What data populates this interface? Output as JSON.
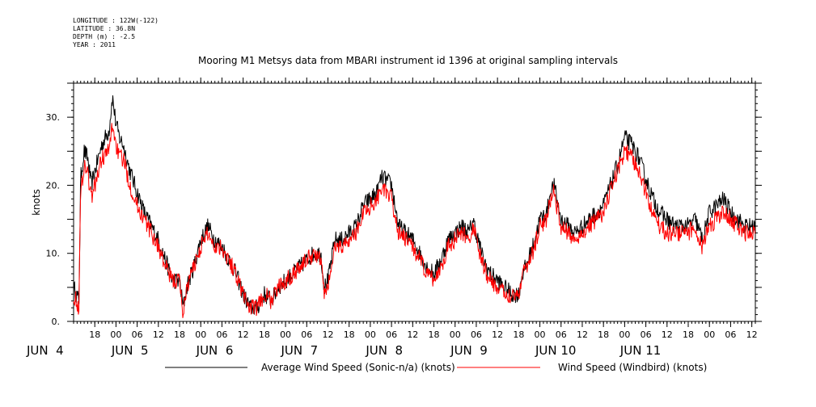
{
  "header": {
    "longitude": "LONGITUDE : 122W(-122)",
    "latitude": "LATITUDE : 36.8N",
    "depth": "DEPTH (m) : -2.5",
    "year": "YEAR : 2011"
  },
  "chart_data": {
    "type": "line",
    "title": "Mooring M1 Metsys data from MBARI instrument id 1396 at original sampling intervals",
    "ylabel": "knots",
    "ylim": [
      0,
      35
    ],
    "y_ticks": [
      0,
      10,
      20,
      30
    ],
    "y_tick_labels": [
      "0.",
      "10.",
      "20.",
      "30."
    ],
    "x_unit": "hours since JUN 3 12:00",
    "xlim": [
      0,
      193
    ],
    "x_hour_ticks": [
      {
        "t": 6,
        "label": "18"
      },
      {
        "t": 12,
        "label": "00"
      },
      {
        "t": 18,
        "label": "06"
      },
      {
        "t": 24,
        "label": "12"
      },
      {
        "t": 30,
        "label": "18"
      },
      {
        "t": 36,
        "label": "00"
      },
      {
        "t": 42,
        "label": "06"
      },
      {
        "t": 48,
        "label": "12"
      },
      {
        "t": 54,
        "label": "18"
      },
      {
        "t": 60,
        "label": "00"
      },
      {
        "t": 66,
        "label": "06"
      },
      {
        "t": 72,
        "label": "12"
      },
      {
        "t": 78,
        "label": "18"
      },
      {
        "t": 84,
        "label": "00"
      },
      {
        "t": 90,
        "label": "06"
      },
      {
        "t": 96,
        "label": "12"
      },
      {
        "t": 102,
        "label": "18"
      },
      {
        "t": 108,
        "label": "00"
      },
      {
        "t": 114,
        "label": "06"
      },
      {
        "t": 120,
        "label": "12"
      },
      {
        "t": 126,
        "label": "18"
      },
      {
        "t": 132,
        "label": "00"
      },
      {
        "t": 138,
        "label": "06"
      },
      {
        "t": 144,
        "label": "12"
      },
      {
        "t": 150,
        "label": "18"
      },
      {
        "t": 156,
        "label": "00"
      },
      {
        "t": 162,
        "label": "06"
      },
      {
        "t": 168,
        "label": "12"
      },
      {
        "t": 174,
        "label": "18"
      },
      {
        "t": 180,
        "label": "00"
      },
      {
        "t": 186,
        "label": "06"
      },
      {
        "t": 192,
        "label": "12"
      }
    ],
    "x_day_labels": [
      {
        "t": 0,
        "label": "JUN  4"
      },
      {
        "t": 24,
        "label": "JUN  5"
      },
      {
        "t": 48,
        "label": "JUN  6"
      },
      {
        "t": 72,
        "label": "JUN  7"
      },
      {
        "t": 96,
        "label": "JUN  8"
      },
      {
        "t": 120,
        "label": "JUN  9"
      },
      {
        "t": 144,
        "label": "JUN 10"
      },
      {
        "t": 168,
        "label": "JUN 11"
      }
    ],
    "series": [
      {
        "name": "Average Wind Speed (Sonic-n/a) (knots)",
        "color": "#000000",
        "x": [
          0,
          1.5,
          2,
          3,
          4,
          5,
          6,
          8,
          10,
          11,
          12,
          13,
          14,
          16,
          18,
          20,
          22,
          24,
          26,
          28,
          30,
          31,
          32,
          34,
          36,
          38,
          40,
          42,
          44,
          46,
          48,
          50,
          52,
          54,
          56,
          58,
          60,
          62,
          64,
          66,
          68,
          70,
          71,
          72,
          74,
          76,
          78,
          80,
          82,
          84,
          86,
          87,
          88,
          90,
          92,
          94,
          96,
          98,
          100,
          102,
          104,
          106,
          108,
          110,
          112,
          113,
          114,
          116,
          118,
          120,
          122,
          124,
          126,
          127,
          128,
          130,
          132,
          134,
          135,
          136,
          138,
          140,
          142,
          144,
          146,
          148,
          150,
          152,
          154,
          156,
          158,
          160,
          162,
          164,
          166,
          168,
          170,
          172,
          174,
          176,
          178,
          180,
          182,
          184,
          186,
          188,
          190,
          192,
          193
        ],
        "y": [
          5,
          3,
          21,
          25,
          24,
          20,
          22,
          26,
          28,
          33,
          29,
          27,
          26,
          22,
          19,
          16,
          14,
          12,
          9,
          6,
          6,
          2,
          5,
          8,
          12,
          14,
          12,
          11,
          9,
          7,
          4,
          2,
          2,
          4,
          3,
          5,
          6,
          7,
          8,
          9,
          10,
          10,
          5,
          6,
          12,
          12,
          13,
          14,
          17,
          18,
          19,
          21,
          21,
          20,
          14,
          13,
          12,
          10,
          8,
          7,
          9,
          12,
          13,
          14,
          13,
          15,
          13,
          9,
          7,
          6,
          5,
          4,
          4,
          7,
          8,
          11,
          15,
          16,
          19,
          20,
          15,
          14,
          13,
          14,
          15,
          16,
          17,
          20,
          23,
          27,
          26,
          24,
          21,
          18,
          16,
          15,
          14,
          14,
          14,
          15,
          12,
          16,
          17,
          18,
          16,
          15,
          14,
          14,
          14
        ]
      },
      {
        "name": "Wind Speed (Windbird) (knots)",
        "color": "#ff0000",
        "x": [
          0,
          1.5,
          2,
          3,
          4,
          5,
          6,
          8,
          10,
          11,
          12,
          13,
          14,
          16,
          18,
          20,
          22,
          24,
          26,
          28,
          30,
          31,
          32,
          34,
          36,
          38,
          40,
          42,
          44,
          46,
          48,
          50,
          52,
          54,
          56,
          58,
          60,
          62,
          64,
          66,
          68,
          70,
          71,
          72,
          74,
          76,
          78,
          80,
          82,
          84,
          86,
          87,
          88,
          90,
          92,
          94,
          96,
          98,
          100,
          102,
          104,
          106,
          108,
          110,
          112,
          113,
          114,
          116,
          118,
          120,
          122,
          124,
          126,
          127,
          128,
          130,
          132,
          134,
          135,
          136,
          138,
          140,
          142,
          144,
          146,
          148,
          150,
          152,
          154,
          156,
          158,
          160,
          162,
          164,
          166,
          168,
          170,
          172,
          174,
          176,
          178,
          180,
          182,
          184,
          186,
          188,
          190,
          192,
          193
        ],
        "y": [
          4,
          2,
          19,
          23,
          22,
          18,
          20,
          24,
          25,
          29,
          26,
          24,
          24,
          20,
          17,
          15,
          13,
          11,
          8,
          6,
          6,
          1,
          5,
          8,
          11,
          13,
          11,
          11,
          9,
          7,
          4,
          2,
          2,
          4,
          3,
          5,
          6,
          7,
          8,
          9,
          10,
          9,
          4,
          5,
          11,
          11,
          12,
          13,
          16,
          17,
          18,
          20,
          19,
          18,
          13,
          12,
          11,
          9,
          7,
          6,
          8,
          11,
          12,
          13,
          12,
          14,
          12,
          8,
          6,
          5,
          4,
          4,
          4,
          7,
          8,
          10,
          14,
          15,
          18,
          19,
          14,
          13,
          12,
          13,
          14,
          15,
          16,
          19,
          22,
          25,
          24,
          22,
          19,
          16,
          14,
          13,
          13,
          13,
          13,
          14,
          11,
          14,
          15,
          16,
          15,
          14,
          13,
          13,
          13
        ]
      }
    ]
  }
}
